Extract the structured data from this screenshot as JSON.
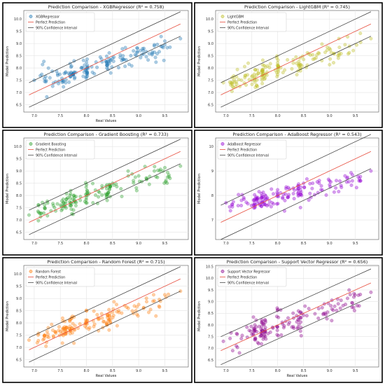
{
  "chart_data": [
    {
      "type": "scatter",
      "title": "Prediction Comparison - XGBRegressor (R² = 0.758)",
      "xlabel": "Real Values",
      "ylabel": "Model Prediction",
      "xlim": [
        6.8,
        9.95
      ],
      "ylim": [
        6.2,
        10.35
      ],
      "xticks": [
        "7.0",
        "7.5",
        "8.0",
        "8.5",
        "9.0",
        "9.5"
      ],
      "yticks": [
        "6.5",
        "7.0",
        "7.5",
        "8.0",
        "8.5",
        "9.0",
        "9.5",
        "10.0"
      ],
      "grid": true,
      "legend_position": "top-left",
      "legend": [
        "XGBRegressor",
        "Perfect Prediction",
        "90% Confidence Interval"
      ],
      "perfect_line": {
        "x": [
          6.9,
          9.8
        ],
        "y": [
          6.9,
          9.8
        ]
      },
      "confidence_band": 0.5,
      "point_color": "#1f77b4",
      "seed": 11,
      "spread": 0.22,
      "shrink": 0.58,
      "points": [
        [
          7.0,
          7.5
        ],
        [
          7.2,
          7.45
        ],
        [
          7.3,
          7.6
        ],
        [
          7.45,
          7.7
        ],
        [
          7.6,
          7.8
        ],
        [
          7.7,
          7.65
        ],
        [
          7.9,
          8.0
        ],
        [
          8.1,
          8.05
        ],
        [
          8.3,
          8.25
        ],
        [
          8.5,
          8.4
        ],
        [
          8.7,
          8.5
        ],
        [
          8.9,
          8.7
        ],
        [
          9.1,
          8.8
        ],
        [
          9.3,
          8.95
        ],
        [
          9.5,
          9.1
        ],
        [
          9.6,
          8.85
        ],
        [
          9.8,
          9.2
        ]
      ]
    },
    {
      "type": "scatter",
      "title": "Prediction Comparison - LightGBM (R² = 0.745)",
      "xlabel": "",
      "ylabel": "Model Prediction",
      "xlim": [
        6.8,
        9.95
      ],
      "ylim": [
        6.2,
        10.35
      ],
      "xticks": [
        "7.0",
        "7.5",
        "8.0",
        "8.5",
        "9.0",
        "9.5"
      ],
      "yticks": [
        "6.5",
        "7.0",
        "7.5",
        "8.0",
        "8.5",
        "9.0",
        "9.5",
        "10.0"
      ],
      "grid": true,
      "legend_position": "top-left",
      "legend": [
        "LightGBM",
        "Perfect Prediction",
        "90% Confidence Interval"
      ],
      "perfect_line": {
        "x": [
          6.9,
          9.8
        ],
        "y": [
          6.9,
          9.8
        ]
      },
      "confidence_band": 0.5,
      "point_color": "#bcbd22",
      "seed": 23,
      "spread": 0.22,
      "shrink": 0.6,
      "points": [
        [
          6.95,
          7.4
        ],
        [
          7.3,
          7.5
        ],
        [
          7.5,
          7.65
        ],
        [
          7.7,
          7.7
        ],
        [
          8.0,
          8.0
        ],
        [
          8.3,
          8.2
        ],
        [
          8.5,
          8.35
        ],
        [
          8.8,
          8.6
        ],
        [
          9.0,
          8.8
        ],
        [
          9.3,
          8.95
        ],
        [
          9.6,
          9.05
        ],
        [
          9.8,
          9.2
        ]
      ]
    },
    {
      "type": "scatter",
      "title": "Prediction Comparison - Gradient Boosting (R² = 0.733)",
      "xlabel": "",
      "ylabel": "Model Prediction",
      "xlim": [
        6.8,
        9.95
      ],
      "ylim": [
        6.2,
        10.35
      ],
      "xticks": [
        "7.0",
        "7.5",
        "8.0",
        "8.5",
        "9.0",
        "9.5"
      ],
      "yticks": [
        "6.5",
        "7.0",
        "7.5",
        "8.0",
        "8.5",
        "9.0",
        "9.5",
        "10.0"
      ],
      "grid": true,
      "legend_position": "top-left",
      "legend": [
        "Gradient Boosting",
        "Perfect Prediction",
        "90% Confidence Interval"
      ],
      "perfect_line": {
        "x": [
          6.9,
          9.8
        ],
        "y": [
          6.9,
          9.8
        ]
      },
      "confidence_band": 0.5,
      "point_color": "#2ca02c",
      "seed": 37,
      "spread": 0.23,
      "shrink": 0.6,
      "points": [
        [
          6.9,
          7.2
        ],
        [
          7.2,
          7.5
        ],
        [
          7.5,
          7.6
        ],
        [
          7.7,
          7.7
        ],
        [
          8.0,
          8.0
        ],
        [
          8.3,
          8.3
        ],
        [
          8.5,
          8.5
        ],
        [
          8.8,
          8.8
        ],
        [
          9.0,
          8.8
        ],
        [
          9.3,
          9.0
        ],
        [
          9.6,
          8.7
        ],
        [
          9.8,
          9.2
        ]
      ]
    },
    {
      "type": "scatter",
      "title": "Prediction Comparison - AdaBoost Regressor (R² = 0.543)",
      "xlabel": "",
      "ylabel": "Model Prediction",
      "xlim": [
        6.8,
        9.95
      ],
      "ylim": [
        6.2,
        10.35
      ],
      "xticks": [
        "7.0",
        "7.5",
        "8.0",
        "8.5",
        "9.0",
        "9.5"
      ],
      "yticks": [
        "7",
        "8",
        "9",
        "10"
      ],
      "grid": true,
      "legend_position": "top-left",
      "legend": [
        "AdaBoost Regressor",
        "Perfect Prediction",
        "90% Confidence Interval"
      ],
      "perfect_line": {
        "x": [
          6.9,
          9.8
        ],
        "y": [
          6.9,
          9.8
        ]
      },
      "confidence_band": 0.7,
      "point_color": "#9400d3",
      "seed": 51,
      "spread": 0.2,
      "shrink": 0.45,
      "points": [
        [
          7.0,
          7.7
        ],
        [
          7.3,
          7.8
        ],
        [
          7.6,
          7.85
        ],
        [
          7.8,
          7.9
        ],
        [
          8.0,
          8.0
        ],
        [
          8.3,
          8.3
        ],
        [
          8.5,
          8.5
        ],
        [
          8.8,
          8.5
        ],
        [
          9.0,
          8.6
        ],
        [
          9.3,
          8.8
        ],
        [
          9.6,
          8.6
        ],
        [
          9.8,
          9.0
        ]
      ]
    },
    {
      "type": "scatter",
      "title": "Prediction Comparison - Random Forest (R² = 0.715)",
      "xlabel": "Real Values",
      "ylabel": "Model Prediction",
      "xlim": [
        6.8,
        9.95
      ],
      "ylim": [
        6.2,
        10.35
      ],
      "xticks": [
        "7.0",
        "7.5",
        "8.0",
        "8.5",
        "9.0",
        "9.5"
      ],
      "yticks": [
        "6.5",
        "7.0",
        "7.5",
        "8.0",
        "8.5",
        "9.0",
        "9.5",
        "10.0"
      ],
      "grid": true,
      "legend_position": "top-left",
      "legend": [
        "Random Forest",
        "Perfect Prediction",
        "90% Confidence Interval"
      ],
      "perfect_line": {
        "x": [
          6.9,
          9.8
        ],
        "y": [
          6.9,
          9.8
        ]
      },
      "confidence_band": 0.5,
      "point_color": "#ff7f0e",
      "seed": 67,
      "spread": 0.22,
      "shrink": 0.6,
      "points": [
        [
          6.9,
          7.3
        ],
        [
          7.2,
          7.5
        ],
        [
          7.5,
          7.65
        ],
        [
          7.7,
          7.7
        ],
        [
          8.0,
          8.0
        ],
        [
          8.3,
          8.2
        ],
        [
          8.5,
          8.45
        ],
        [
          8.8,
          8.6
        ],
        [
          9.0,
          8.75
        ],
        [
          9.3,
          8.9
        ],
        [
          9.5,
          9.15
        ],
        [
          9.8,
          9.3
        ]
      ]
    },
    {
      "type": "scatter",
      "title": "Prediction Comparison - Support Vector Regressor (R² = 0.656)",
      "xlabel": "Real Values",
      "ylabel": "Model Prediction",
      "xlim": [
        6.8,
        9.95
      ],
      "ylim": [
        6.2,
        10.55
      ],
      "xticks": [
        "7.0",
        "7.5",
        "8.0",
        "8.5",
        "9.0",
        "9.5"
      ],
      "yticks": [
        "6.5",
        "7.0",
        "7.5",
        "8.0",
        "8.5",
        "9.0",
        "9.5",
        "10.0",
        "10.5"
      ],
      "grid": true,
      "legend_position": "top-left",
      "legend": [
        "Support Vector Regressor",
        "Perfect Prediction",
        "90% Confidence Interval"
      ],
      "perfect_line": {
        "x": [
          6.9,
          9.8
        ],
        "y": [
          6.9,
          9.8
        ]
      },
      "confidence_band": 0.6,
      "point_color": "#8b008b",
      "seed": 83,
      "spread": 0.3,
      "shrink": 0.75,
      "points": [
        [
          6.95,
          7.3
        ],
        [
          7.2,
          7.1
        ],
        [
          7.5,
          7.6
        ],
        [
          7.7,
          7.75
        ],
        [
          7.9,
          7.9
        ],
        [
          8.2,
          8.3
        ],
        [
          8.4,
          8.6
        ],
        [
          8.6,
          8.7
        ],
        [
          8.9,
          8.9
        ],
        [
          9.1,
          8.8
        ],
        [
          9.4,
          9.3
        ],
        [
          9.8,
          9.4
        ]
      ]
    }
  ]
}
